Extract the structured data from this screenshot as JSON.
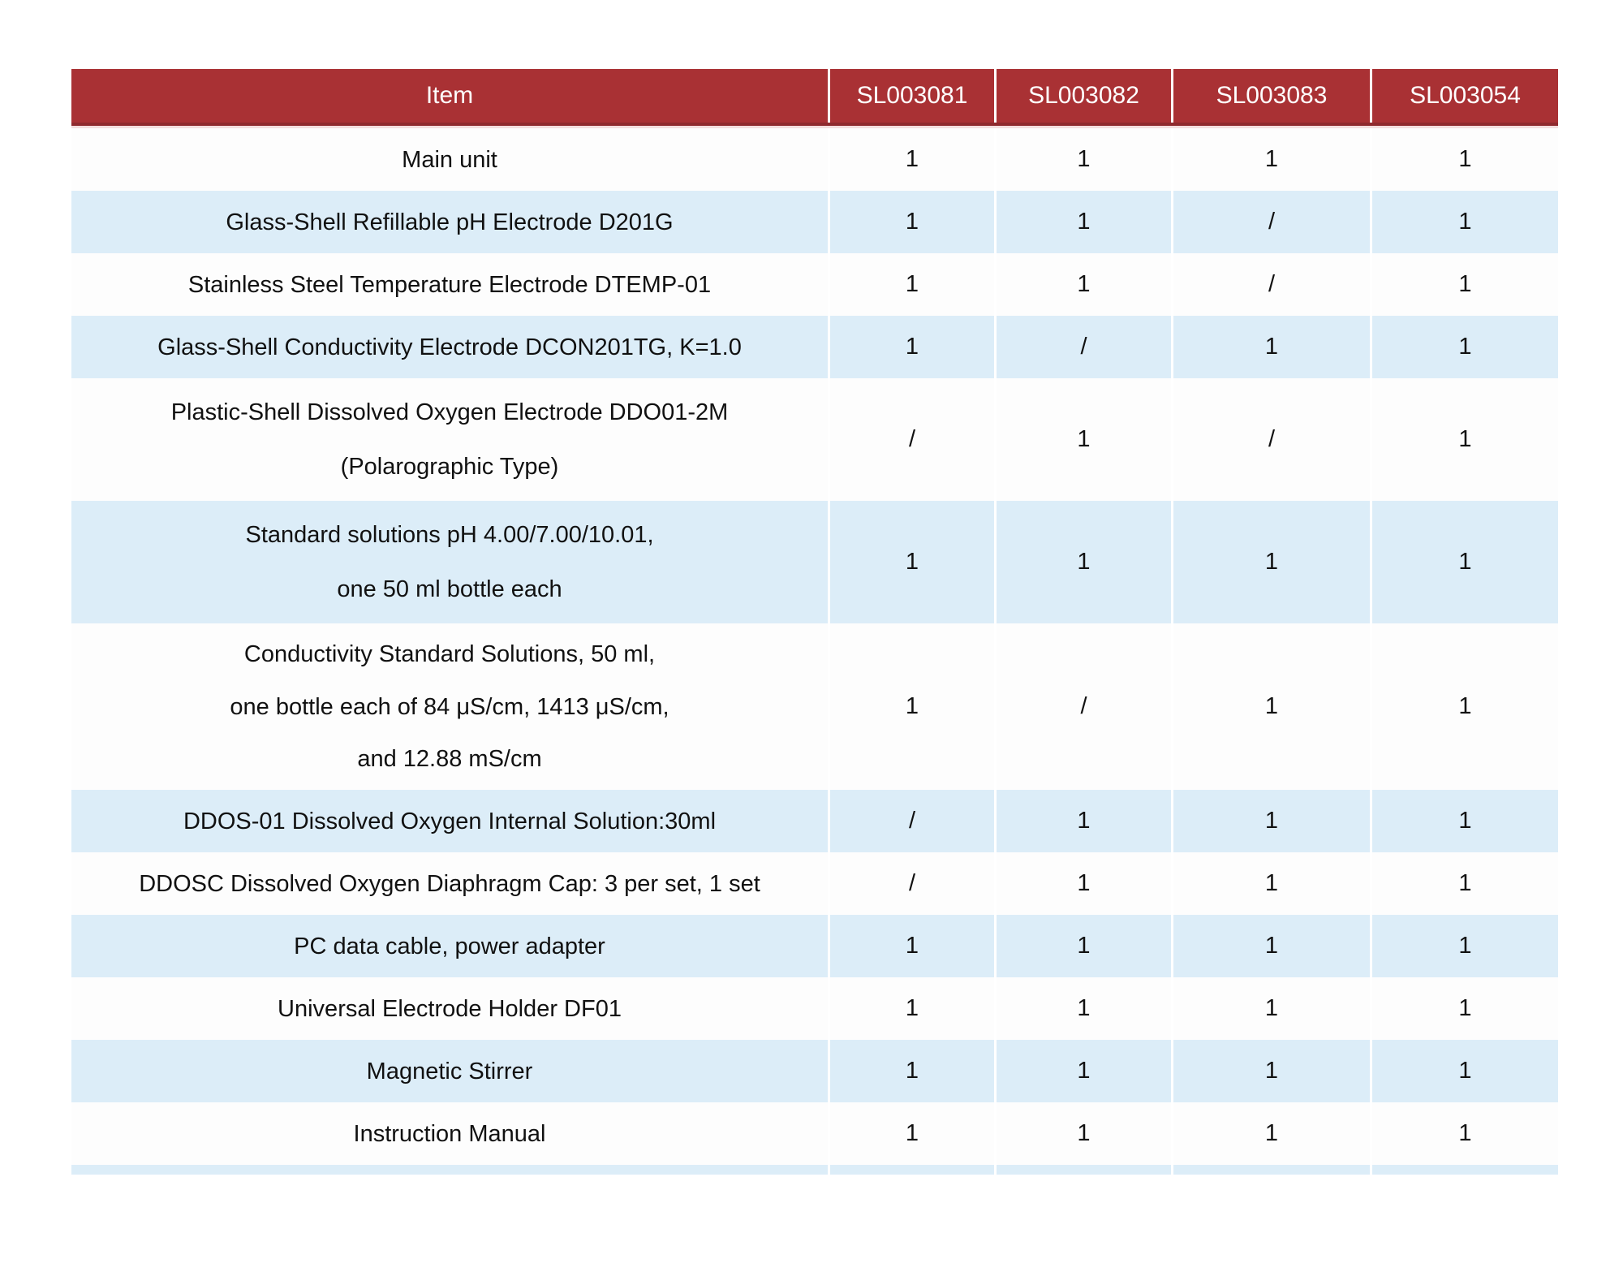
{
  "colors": {
    "header_bg": "#A93134",
    "header_text": "#FFFFFF",
    "row_bg": "#FDFDFD",
    "row_alt_bg": "#DCEDF8",
    "text": "#111111"
  },
  "table": {
    "columns": [
      "Item",
      "SL003081",
      "SL003082",
      "SL003083",
      "SL003054"
    ],
    "rows": [
      {
        "item": [
          "Main unit"
        ],
        "values": [
          "1",
          "1",
          "1",
          "1"
        ]
      },
      {
        "item": [
          "Glass-Shell Refillable pH Electrode D201G"
        ],
        "values": [
          "1",
          "1",
          "/",
          "1"
        ]
      },
      {
        "item": [
          "Stainless Steel Temperature Electrode DTEMP-01"
        ],
        "values": [
          "1",
          "1",
          "/",
          "1"
        ]
      },
      {
        "item": [
          "Glass-Shell Conductivity Electrode DCON201TG, K=1.0"
        ],
        "values": [
          "1",
          "/",
          "1",
          "1"
        ]
      },
      {
        "item": [
          "Plastic-Shell Dissolved Oxygen Electrode DDO01-2M",
          "(Polarographic Type)"
        ],
        "values": [
          "/",
          "1",
          "/",
          "1"
        ]
      },
      {
        "item": [
          "Standard solutions pH 4.00/7.00/10.01,",
          "one 50 ml bottle each"
        ],
        "values": [
          "1",
          "1",
          "1",
          "1"
        ]
      },
      {
        "item": [
          "Conductivity Standard Solutions, 50 ml,",
          "one bottle each of 84 μS/cm, 1413 μS/cm,",
          "and 12.88 mS/cm"
        ],
        "values": [
          "1",
          "/",
          "1",
          "1"
        ]
      },
      {
        "item": [
          "DDOS-01 Dissolved Oxygen Internal Solution:30ml"
        ],
        "values": [
          "/",
          "1",
          "1",
          "1"
        ]
      },
      {
        "item": [
          "DDOSC Dissolved Oxygen Diaphragm Cap: 3 per set, 1 set"
        ],
        "values": [
          "/",
          "1",
          "1",
          "1"
        ]
      },
      {
        "item": [
          "PC data cable, power adapter"
        ],
        "values": [
          "1",
          "1",
          "1",
          "1"
        ]
      },
      {
        "item": [
          "Universal Electrode Holder DF01"
        ],
        "values": [
          "1",
          "1",
          "1",
          "1"
        ]
      },
      {
        "item": [
          "Magnetic Stirrer"
        ],
        "values": [
          "1",
          "1",
          "1",
          "1"
        ]
      },
      {
        "item": [
          "Instruction Manual"
        ],
        "values": [
          "1",
          "1",
          "1",
          "1"
        ]
      }
    ]
  }
}
